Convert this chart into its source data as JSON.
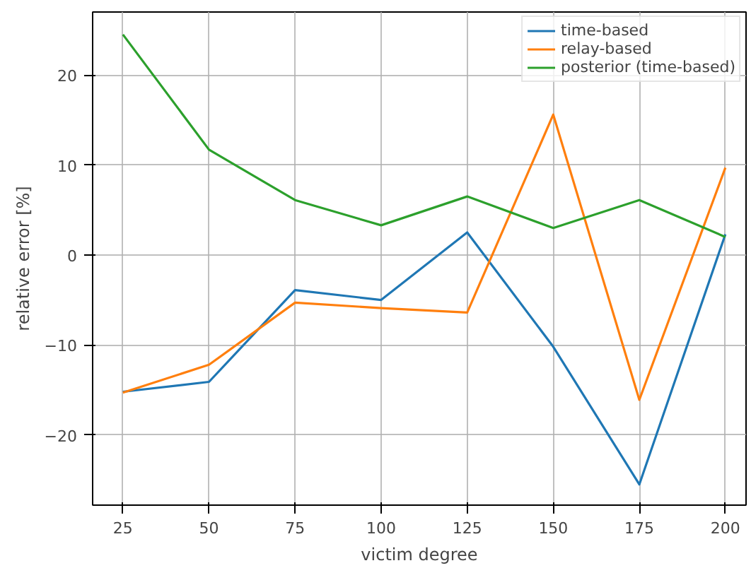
{
  "chart_data": {
    "type": "line",
    "xlabel": "victim degree",
    "ylabel": "relative error [%]",
    "x": [
      25,
      50,
      75,
      100,
      125,
      150,
      175,
      200
    ],
    "series": [
      {
        "name": "time-based",
        "color": "#1f77b4",
        "values": [
          -15.2,
          -14.1,
          -3.9,
          -5.0,
          2.5,
          -10.2,
          -25.5,
          2.3
        ]
      },
      {
        "name": "relay-based",
        "color": "#ff7f0e",
        "values": [
          -15.3,
          -12.2,
          -5.3,
          -5.9,
          -6.4,
          15.6,
          -16.1,
          9.7
        ]
      },
      {
        "name": "posterior (time-based)",
        "color": "#2ca02c",
        "values": [
          24.5,
          11.7,
          6.1,
          3.3,
          6.5,
          3.0,
          6.1,
          2.0
        ]
      }
    ],
    "xlim": [
      16.2,
      206
    ],
    "ylim": [
      -27.8,
      27
    ],
    "xticks": [
      25,
      50,
      75,
      100,
      125,
      150,
      175,
      200
    ],
    "yticks": [
      -20,
      -10,
      0,
      10,
      20
    ],
    "grid": true,
    "legend": "top right"
  }
}
